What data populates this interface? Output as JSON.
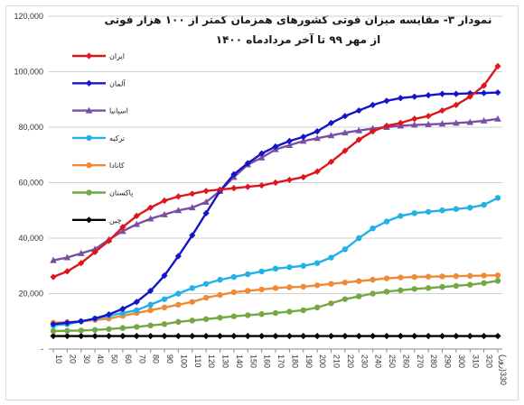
{
  "chart_data": {
    "type": "line",
    "title_line1": "نمودار ۳- مقایسه میزان فوتی کشورهای همزمان کمتر از ۱۰۰ هزار فوتی",
    "title_line2": "از مهر ۹۹  تا  آخر مردادماه ۱۴۰۰",
    "x_tick_labels": [
      "10",
      "20",
      "30",
      "40",
      "50",
      "60",
      "70",
      "80",
      "90",
      "100",
      "110",
      "120",
      "130",
      "140",
      "150",
      "160",
      "170",
      "180",
      "190",
      "200",
      "210",
      "220",
      "230",
      "240",
      "250",
      "260",
      "270",
      "280",
      "290",
      "300",
      "310",
      "320",
      "(روز)330"
    ],
    "x": [
      10,
      20,
      30,
      40,
      50,
      60,
      70,
      80,
      90,
      100,
      110,
      120,
      130,
      140,
      150,
      160,
      170,
      180,
      190,
      200,
      210,
      220,
      230,
      240,
      250,
      260,
      270,
      280,
      290,
      300,
      310,
      320,
      330
    ],
    "ylim": [
      0,
      120000
    ],
    "y_ticks": [
      0,
      20000,
      40000,
      60000,
      80000,
      100000,
      120000
    ],
    "y_tick_labels": [
      "-",
      "20,000",
      "40,000",
      "60,000",
      "80,000",
      "100,000",
      "120,000"
    ],
    "grid": "horizontal",
    "legend_position": "left",
    "series": [
      {
        "name": "ایران",
        "color": "#e0151b",
        "marker": "diamond",
        "values": [
          26000,
          28000,
          31000,
          35000,
          39000,
          44000,
          48000,
          51000,
          53500,
          55000,
          56000,
          57000,
          57500,
          58000,
          58500,
          59000,
          60000,
          61000,
          62000,
          64000,
          67500,
          71500,
          75500,
          78500,
          80500,
          81500,
          83000,
          84000,
          86000,
          88000,
          91000,
          95000,
          102000
        ]
      },
      {
        "name": "آلمان",
        "color": "#1414c8",
        "marker": "diamond",
        "values": [
          9000,
          9500,
          10000,
          11000,
          12500,
          14500,
          17000,
          21000,
          26500,
          33500,
          41000,
          49000,
          57000,
          63000,
          67000,
          70500,
          73000,
          75000,
          76500,
          78500,
          81500,
          84000,
          86000,
          88000,
          89500,
          90500,
          91000,
          91500,
          92000,
          92000,
          92200,
          92300,
          92500
        ]
      },
      {
        "name": "اسپانیا",
        "color": "#7b4fa0",
        "marker": "triangle",
        "values": [
          32000,
          33000,
          34500,
          36000,
          39500,
          42500,
          45000,
          47000,
          48500,
          50000,
          51000,
          53000,
          57000,
          62000,
          66500,
          69000,
          72000,
          73500,
          75000,
          76000,
          77000,
          78000,
          78800,
          79500,
          80000,
          80500,
          80800,
          81000,
          81200,
          81500,
          81800,
          82300,
          83000
        ]
      },
      {
        "name": "ترکیه",
        "color": "#22b0e8",
        "marker": "circle",
        "values": [
          8500,
          9000,
          10000,
          11000,
          12000,
          13000,
          14000,
          16000,
          18000,
          20000,
          22000,
          23500,
          25000,
          26000,
          27000,
          28000,
          29000,
          29500,
          30000,
          31000,
          33000,
          36000,
          40000,
          43500,
          46000,
          48000,
          49000,
          49500,
          50000,
          50500,
          51000,
          52000,
          54500
        ]
      },
      {
        "name": "کانادا",
        "color": "#ef8a36",
        "marker": "circle",
        "values": [
          9500,
          9700,
          10000,
          10500,
          11000,
          12000,
          13000,
          14000,
          15000,
          16000,
          17000,
          18500,
          19500,
          20500,
          21000,
          21500,
          22000,
          22300,
          22500,
          23000,
          23500,
          24000,
          24500,
          25000,
          25500,
          25800,
          26000,
          26100,
          26200,
          26300,
          26400,
          26500,
          26600
        ]
      },
      {
        "name": "پاکستان",
        "color": "#74a843",
        "marker": "circle",
        "values": [
          6500,
          6600,
          6700,
          6900,
          7200,
          7600,
          8000,
          8500,
          9000,
          9800,
          10300,
          10800,
          11300,
          11800,
          12200,
          12600,
          13000,
          13500,
          14000,
          15000,
          16500,
          18000,
          19000,
          20000,
          20700,
          21200,
          21700,
          22000,
          22400,
          22800,
          23200,
          23800,
          24600
        ]
      },
      {
        "name": "چین",
        "color": "#000000",
        "marker": "diamond",
        "values": [
          4700,
          4700,
          4700,
          4700,
          4700,
          4700,
          4700,
          4700,
          4700,
          4700,
          4700,
          4700,
          4700,
          4700,
          4700,
          4700,
          4700,
          4700,
          4700,
          4700,
          4700,
          4700,
          4700,
          4700,
          4700,
          4700,
          4700,
          4700,
          4700,
          4700,
          4700,
          4700,
          4700
        ]
      }
    ]
  }
}
